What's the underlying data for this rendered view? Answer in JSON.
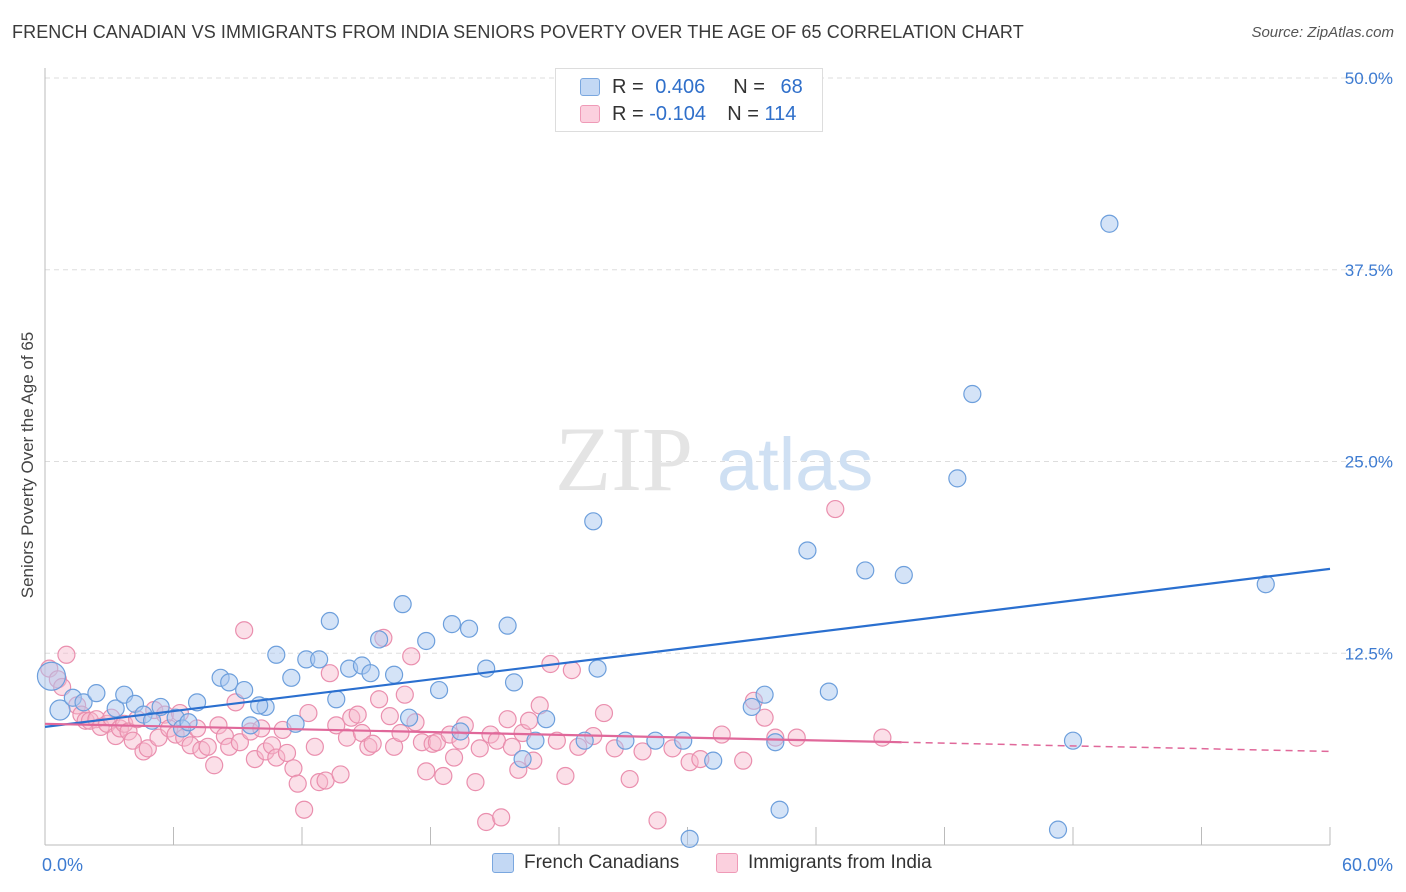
{
  "header": {
    "title": "FRENCH CANADIAN VS IMMIGRANTS FROM INDIA SENIORS POVERTY OVER THE AGE OF 65 CORRELATION CHART",
    "source": "Source: ZipAtlas.com"
  },
  "watermark": {
    "zip": "ZIP",
    "atlas": "atlas"
  },
  "legend": {
    "rows": [
      {
        "r_label": "R =",
        "r_value": "0.406",
        "n_label": "N =",
        "n_value": "68"
      },
      {
        "r_label": "R =",
        "r_value": "-0.104",
        "n_label": "N =",
        "n_value": "114"
      }
    ]
  },
  "colors": {
    "blue_fill": "#a9c8ef",
    "blue_stroke": "#6d9fdc",
    "blue_line": "#2a6fcf",
    "pink_fill": "#f6b8cb",
    "pink_stroke": "#ea8fae",
    "pink_line": "#e0689a",
    "axis_text": "#3d7bd1",
    "grid": "#dddddd"
  },
  "chart_data": {
    "type": "scatter",
    "title": "FRENCH CANADIAN VS IMMIGRANTS FROM INDIA SENIORS POVERTY OVER THE AGE OF 65 CORRELATION CHART",
    "xlabel": "",
    "ylabel": "Seniors Poverty Over the Age of 65",
    "xlim": [
      0,
      60
    ],
    "ylim": [
      0,
      50
    ],
    "x_tick_labels": [
      "0.0%",
      "60.0%"
    ],
    "y_tick_labels": [
      "12.5%",
      "25.0%",
      "37.5%",
      "50.0%"
    ],
    "y_ticks": [
      12.5,
      25.0,
      37.5,
      50.0
    ],
    "grid": "horizontal dashed",
    "legend_position": "top-center",
    "series": [
      {
        "name": "French Canadians",
        "r": 0.406,
        "n": 68,
        "trend": {
          "x": [
            0,
            60
          ],
          "y": [
            7.7,
            18.0
          ],
          "style": "solid"
        },
        "points": [
          [
            0.3,
            11.0
          ],
          [
            0.7,
            8.8
          ],
          [
            1.3,
            9.6
          ],
          [
            1.8,
            9.3
          ],
          [
            2.4,
            9.9
          ],
          [
            3.3,
            8.9
          ],
          [
            3.7,
            9.8
          ],
          [
            4.2,
            9.2
          ],
          [
            4.6,
            8.5
          ],
          [
            5.0,
            8.1
          ],
          [
            5.4,
            9.0
          ],
          [
            6.1,
            8.3
          ],
          [
            6.4,
            7.6
          ],
          [
            6.7,
            8.0
          ],
          [
            8.2,
            10.9
          ],
          [
            8.6,
            10.6
          ],
          [
            9.3,
            10.1
          ],
          [
            9.6,
            7.8
          ],
          [
            10.3,
            9.0
          ],
          [
            10.8,
            12.4
          ],
          [
            11.5,
            10.9
          ],
          [
            11.7,
            7.9
          ],
          [
            12.2,
            12.1
          ],
          [
            12.8,
            12.1
          ],
          [
            13.3,
            14.6
          ],
          [
            13.6,
            9.5
          ],
          [
            14.2,
            11.5
          ],
          [
            14.8,
            11.7
          ],
          [
            15.2,
            11.2
          ],
          [
            15.6,
            13.4
          ],
          [
            16.3,
            11.1
          ],
          [
            16.7,
            15.7
          ],
          [
            17.0,
            8.3
          ],
          [
            17.8,
            13.3
          ],
          [
            18.4,
            10.1
          ],
          [
            19.0,
            14.4
          ],
          [
            19.4,
            7.4
          ],
          [
            19.8,
            14.1
          ],
          [
            20.6,
            11.5
          ],
          [
            21.6,
            14.3
          ],
          [
            21.9,
            10.6
          ],
          [
            22.3,
            5.6
          ],
          [
            22.9,
            6.8
          ],
          [
            23.4,
            8.2
          ],
          [
            25.2,
            6.8
          ],
          [
            25.6,
            21.1
          ],
          [
            25.8,
            11.5
          ],
          [
            27.1,
            6.8
          ],
          [
            28.5,
            6.8
          ],
          [
            29.8,
            6.8
          ],
          [
            30.1,
            0.4
          ],
          [
            31.2,
            5.5
          ],
          [
            33.0,
            9.0
          ],
          [
            33.6,
            9.8
          ],
          [
            34.1,
            6.7
          ],
          [
            34.3,
            2.3
          ],
          [
            35.6,
            19.2
          ],
          [
            36.6,
            10.0
          ],
          [
            38.3,
            17.9
          ],
          [
            40.1,
            17.6
          ],
          [
            42.6,
            23.9
          ],
          [
            43.3,
            29.4
          ],
          [
            47.3,
            1.0
          ],
          [
            49.7,
            40.5
          ],
          [
            57.0,
            17.0
          ],
          [
            48.0,
            6.8
          ],
          [
            10.0,
            9.1
          ],
          [
            7.1,
            9.3
          ]
        ]
      },
      {
        "name": "Immigrants from India",
        "r": -0.104,
        "n": 114,
        "trend": {
          "x": [
            0,
            40
          ],
          "y": [
            7.9,
            6.7
          ],
          "style": "solid",
          "dashed_extension": {
            "x": [
              40,
              60
            ],
            "y": [
              6.7,
              6.1
            ]
          }
        },
        "points": [
          [
            0.2,
            11.5
          ],
          [
            0.6,
            10.8
          ],
          [
            0.8,
            10.3
          ],
          [
            1.0,
            12.4
          ],
          [
            1.5,
            9.1
          ],
          [
            1.7,
            8.5
          ],
          [
            1.9,
            8.1
          ],
          [
            2.1,
            8.1
          ],
          [
            2.4,
            8.2
          ],
          [
            2.6,
            7.7
          ],
          [
            2.9,
            7.9
          ],
          [
            3.1,
            8.3
          ],
          [
            3.3,
            7.1
          ],
          [
            3.5,
            7.6
          ],
          [
            3.7,
            7.9
          ],
          [
            3.9,
            7.4
          ],
          [
            4.1,
            6.8
          ],
          [
            4.3,
            8.2
          ],
          [
            4.6,
            6.1
          ],
          [
            4.8,
            6.3
          ],
          [
            5.1,
            8.8
          ],
          [
            5.3,
            7.0
          ],
          [
            5.6,
            8.5
          ],
          [
            5.8,
            7.6
          ],
          [
            6.1,
            7.2
          ],
          [
            6.3,
            8.6
          ],
          [
            6.5,
            7.0
          ],
          [
            6.8,
            6.5
          ],
          [
            7.1,
            7.6
          ],
          [
            7.3,
            6.2
          ],
          [
            7.6,
            6.4
          ],
          [
            7.9,
            5.2
          ],
          [
            8.1,
            7.8
          ],
          [
            8.4,
            7.1
          ],
          [
            8.6,
            6.4
          ],
          [
            8.9,
            9.3
          ],
          [
            9.1,
            6.7
          ],
          [
            9.3,
            14.0
          ],
          [
            9.6,
            7.4
          ],
          [
            9.8,
            5.6
          ],
          [
            10.1,
            7.6
          ],
          [
            10.3,
            6.1
          ],
          [
            10.6,
            6.5
          ],
          [
            10.8,
            5.7
          ],
          [
            11.1,
            7.5
          ],
          [
            11.3,
            6.0
          ],
          [
            11.6,
            5.0
          ],
          [
            11.8,
            4.0
          ],
          [
            12.1,
            2.3
          ],
          [
            12.3,
            8.6
          ],
          [
            12.6,
            6.4
          ],
          [
            12.8,
            4.1
          ],
          [
            13.1,
            4.2
          ],
          [
            13.3,
            11.2
          ],
          [
            13.6,
            7.8
          ],
          [
            13.8,
            4.6
          ],
          [
            14.1,
            7.0
          ],
          [
            14.3,
            8.3
          ],
          [
            14.6,
            8.5
          ],
          [
            14.8,
            7.3
          ],
          [
            15.1,
            6.4
          ],
          [
            15.3,
            6.6
          ],
          [
            15.6,
            9.5
          ],
          [
            15.8,
            13.5
          ],
          [
            16.1,
            8.4
          ],
          [
            16.3,
            6.4
          ],
          [
            16.6,
            7.3
          ],
          [
            16.8,
            9.8
          ],
          [
            17.1,
            12.3
          ],
          [
            17.3,
            8.0
          ],
          [
            17.6,
            6.7
          ],
          [
            17.8,
            4.8
          ],
          [
            18.1,
            6.6
          ],
          [
            18.3,
            6.7
          ],
          [
            18.6,
            4.5
          ],
          [
            18.9,
            7.2
          ],
          [
            19.1,
            5.7
          ],
          [
            19.4,
            6.8
          ],
          [
            19.6,
            7.8
          ],
          [
            20.1,
            4.1
          ],
          [
            20.3,
            6.3
          ],
          [
            20.6,
            1.5
          ],
          [
            20.8,
            7.2
          ],
          [
            21.1,
            6.8
          ],
          [
            21.3,
            1.8
          ],
          [
            21.6,
            8.2
          ],
          [
            21.8,
            6.4
          ],
          [
            22.1,
            4.9
          ],
          [
            22.3,
            7.3
          ],
          [
            22.6,
            8.1
          ],
          [
            22.8,
            5.5
          ],
          [
            23.1,
            9.1
          ],
          [
            23.6,
            11.8
          ],
          [
            23.9,
            6.8
          ],
          [
            24.3,
            4.5
          ],
          [
            24.6,
            11.4
          ],
          [
            24.9,
            6.4
          ],
          [
            25.6,
            7.1
          ],
          [
            26.1,
            8.6
          ],
          [
            26.6,
            6.3
          ],
          [
            27.3,
            4.3
          ],
          [
            27.9,
            6.1
          ],
          [
            28.6,
            1.6
          ],
          [
            29.3,
            6.3
          ],
          [
            30.1,
            5.4
          ],
          [
            30.6,
            5.6
          ],
          [
            31.6,
            7.2
          ],
          [
            32.6,
            5.5
          ],
          [
            33.1,
            9.4
          ],
          [
            33.6,
            8.3
          ],
          [
            34.1,
            7.0
          ],
          [
            35.1,
            7.0
          ],
          [
            36.9,
            21.9
          ],
          [
            39.1,
            7.0
          ]
        ]
      }
    ]
  },
  "bottom_legend": {
    "series_a": "French Canadians",
    "series_b": "Immigrants from India"
  }
}
